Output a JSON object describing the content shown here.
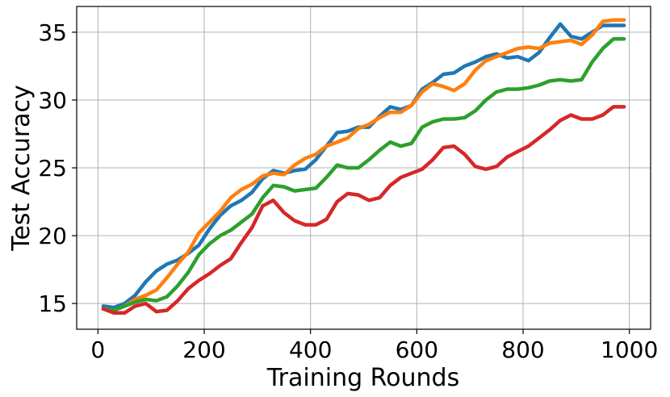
{
  "chart_data": {
    "type": "line",
    "title": "",
    "xlabel": "Training Rounds",
    "ylabel": "Test Accuracy",
    "xlim": [
      -40,
      1040
    ],
    "ylim": [
      13.1,
      36.9
    ],
    "xticks": [
      0,
      200,
      400,
      600,
      800,
      1000
    ],
    "yticks": [
      15,
      20,
      25,
      30,
      35
    ],
    "grid": true,
    "legend": "none",
    "x": [
      10,
      30,
      50,
      70,
      90,
      110,
      130,
      150,
      170,
      190,
      210,
      230,
      250,
      270,
      290,
      310,
      330,
      350,
      370,
      390,
      410,
      430,
      450,
      470,
      490,
      510,
      530,
      550,
      570,
      590,
      610,
      630,
      650,
      670,
      690,
      710,
      730,
      750,
      770,
      790,
      810,
      830,
      850,
      870,
      890,
      910,
      930,
      950,
      970,
      990
    ],
    "series": [
      {
        "color": "#1f77b4",
        "values": [
          14.8,
          14.7,
          15.0,
          15.6,
          16.6,
          17.4,
          17.9,
          18.2,
          18.7,
          19.3,
          20.5,
          21.5,
          22.2,
          22.6,
          23.2,
          24.2,
          24.8,
          24.6,
          24.8,
          24.9,
          25.6,
          26.6,
          27.6,
          27.7,
          28.0,
          28.0,
          28.8,
          29.5,
          29.3,
          29.6,
          30.8,
          31.3,
          31.9,
          32.0,
          32.5,
          32.8,
          33.2,
          33.4,
          33.1,
          33.2,
          32.9,
          33.5,
          34.6,
          35.6,
          34.7,
          34.5,
          35.0,
          35.5,
          35.5,
          35.5
        ]
      },
      {
        "color": "#ff7f0e",
        "values": [
          14.6,
          14.5,
          14.8,
          15.3,
          15.6,
          16.0,
          16.9,
          17.9,
          18.8,
          20.2,
          21.0,
          21.8,
          22.8,
          23.4,
          23.8,
          24.4,
          24.6,
          24.5,
          25.2,
          25.7,
          26.0,
          26.6,
          26.9,
          27.2,
          27.9,
          28.2,
          28.7,
          29.1,
          29.1,
          29.6,
          30.6,
          31.2,
          31.0,
          30.7,
          31.2,
          32.2,
          32.9,
          33.2,
          33.5,
          33.8,
          33.9,
          33.8,
          34.2,
          34.3,
          34.4,
          34.1,
          34.8,
          35.8,
          35.9,
          35.9
        ]
      },
      {
        "color": "#2ca02c",
        "values": [
          14.6,
          14.5,
          14.8,
          15.1,
          15.3,
          15.2,
          15.5,
          16.3,
          17.3,
          18.6,
          19.4,
          20.0,
          20.4,
          21.0,
          21.6,
          22.8,
          23.7,
          23.6,
          23.3,
          23.4,
          23.5,
          24.3,
          25.2,
          25.0,
          25.0,
          25.6,
          26.3,
          26.9,
          26.6,
          26.8,
          28.0,
          28.4,
          28.6,
          28.6,
          28.7,
          29.2,
          30.0,
          30.6,
          30.8,
          30.8,
          30.9,
          31.1,
          31.4,
          31.5,
          31.4,
          31.5,
          32.8,
          33.8,
          34.5,
          34.5
        ]
      },
      {
        "color": "#d62728",
        "values": [
          14.6,
          14.3,
          14.3,
          14.8,
          15.0,
          14.4,
          14.5,
          15.2,
          16.1,
          16.7,
          17.2,
          17.8,
          18.3,
          19.5,
          20.6,
          22.2,
          22.6,
          21.7,
          21.1,
          20.8,
          20.8,
          21.2,
          22.5,
          23.1,
          23.0,
          22.6,
          22.8,
          23.7,
          24.3,
          24.6,
          24.9,
          25.6,
          26.5,
          26.6,
          26.0,
          25.1,
          24.9,
          25.1,
          25.8,
          26.2,
          26.6,
          27.2,
          27.8,
          28.5,
          28.9,
          28.6,
          28.6,
          28.9,
          29.5,
          29.5
        ]
      }
    ]
  }
}
